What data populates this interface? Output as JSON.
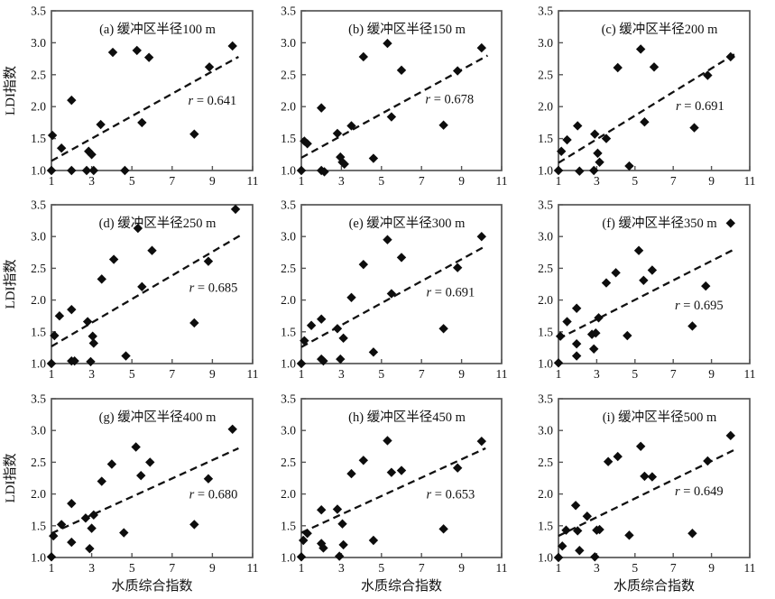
{
  "figure": {
    "xlabel": "水质综合指数",
    "ylabel": "LDI指数",
    "xlim": [
      1,
      11
    ],
    "ylim": [
      1.0,
      3.5
    ],
    "xticks": [
      1,
      3,
      5,
      7,
      9,
      11
    ],
    "yticks": [
      1.0,
      1.5,
      2.0,
      2.5,
      3.0,
      3.5
    ],
    "background": "#ffffff",
    "ink_color": "#111111",
    "frame_color": "#565656",
    "grid": false,
    "marker": "diamond",
    "trend_style": "dashed",
    "legend": "none"
  },
  "chart_data": [
    {
      "id": "a",
      "type": "scatter",
      "title": "(a) 缓冲区半径100 m",
      "r_label": "r = 0.641",
      "r_value": "0.641",
      "r_pos": [
        9.0,
        2.1
      ],
      "trend": {
        "x1": 1,
        "y1": 1.15,
        "x2": 10.3,
        "y2": 2.78
      },
      "points": [
        [
          1,
          1.0
        ],
        [
          1.05,
          1.55
        ],
        [
          1.5,
          1.35
        ],
        [
          2,
          2.1
        ],
        [
          2,
          1.0
        ],
        [
          2.75,
          1.0
        ],
        [
          2.85,
          1.3
        ],
        [
          3.0,
          1.25
        ],
        [
          3.1,
          1.0
        ],
        [
          3.45,
          1.72
        ],
        [
          4.05,
          2.85
        ],
        [
          4.65,
          1.0
        ],
        [
          5.25,
          2.88
        ],
        [
          5.5,
          1.75
        ],
        [
          5.85,
          2.77
        ],
        [
          8.1,
          1.57
        ],
        [
          8.85,
          2.62
        ],
        [
          10,
          2.95
        ]
      ]
    },
    {
      "id": "b",
      "type": "scatter",
      "title": "(b) 缓冲区半径150 m",
      "r_label": "r = 0.678",
      "r_value": "0.678",
      "r_pos": [
        8.4,
        2.12
      ],
      "trend": {
        "x1": 1,
        "y1": 1.2,
        "x2": 10.3,
        "y2": 2.8
      },
      "points": [
        [
          1,
          1.0
        ],
        [
          1.15,
          1.46
        ],
        [
          1.3,
          1.42
        ],
        [
          2,
          1.98
        ],
        [
          2,
          1.0
        ],
        [
          2.15,
          0.98
        ],
        [
          2.8,
          1.58
        ],
        [
          2.95,
          1.21
        ],
        [
          3.05,
          1.13
        ],
        [
          3.15,
          1.1
        ],
        [
          3.5,
          1.7
        ],
        [
          4.1,
          2.78
        ],
        [
          4.6,
          1.19
        ],
        [
          5.3,
          2.99
        ],
        [
          5.5,
          1.84
        ],
        [
          6.0,
          2.57
        ],
        [
          8.1,
          1.71
        ],
        [
          8.8,
          2.56
        ],
        [
          10,
          2.92
        ]
      ]
    },
    {
      "id": "c",
      "type": "scatter",
      "title": "(c) 缓冲区半径200 m",
      "r_label": "r = 0.691",
      "r_value": "0.691",
      "r_pos": [
        8.4,
        2.02
      ],
      "trend": {
        "x1": 1,
        "y1": 1.12,
        "x2": 10.2,
        "y2": 2.82
      },
      "points": [
        [
          1,
          1.0
        ],
        [
          1.15,
          1.3
        ],
        [
          1.45,
          1.48
        ],
        [
          2,
          1.7
        ],
        [
          2.1,
          0.99
        ],
        [
          2.85,
          1.0
        ],
        [
          2.9,
          1.57
        ],
        [
          3.05,
          1.27
        ],
        [
          3.15,
          1.13
        ],
        [
          3.5,
          1.5
        ],
        [
          4.1,
          2.61
        ],
        [
          4.7,
          1.07
        ],
        [
          5.3,
          2.9
        ],
        [
          5.5,
          1.76
        ],
        [
          6.0,
          2.62
        ],
        [
          8.1,
          1.67
        ],
        [
          8.8,
          2.49
        ],
        [
          10,
          2.78
        ]
      ]
    },
    {
      "id": "d",
      "type": "scatter",
      "title": "(d) 缓冲区半径250 m",
      "r_label": "r = 0.685",
      "r_value": "0.685",
      "r_pos": [
        9.05,
        2.2
      ],
      "trend": {
        "x1": 1,
        "y1": 1.27,
        "x2": 10.4,
        "y2": 3.02
      },
      "points": [
        [
          1,
          1.0
        ],
        [
          1.15,
          1.44
        ],
        [
          1.4,
          1.75
        ],
        [
          2,
          1.85
        ],
        [
          2,
          1.04
        ],
        [
          2.15,
          1.04
        ],
        [
          2.8,
          1.66
        ],
        [
          2.95,
          1.03
        ],
        [
          3.05,
          1.43
        ],
        [
          3.1,
          1.32
        ],
        [
          3.5,
          2.33
        ],
        [
          4.1,
          2.64
        ],
        [
          4.7,
          1.12
        ],
        [
          5.3,
          3.13
        ],
        [
          5.5,
          2.21
        ],
        [
          6.0,
          2.78
        ],
        [
          8.1,
          1.64
        ],
        [
          8.8,
          2.61
        ],
        [
          10.15,
          3.43
        ]
      ]
    },
    {
      "id": "e",
      "type": "scatter",
      "title": "(e) 缓冲区半径300 m",
      "r_label": "r = 0.691",
      "r_value": "0.691",
      "r_pos": [
        8.45,
        2.13
      ],
      "trend": {
        "x1": 1,
        "y1": 1.26,
        "x2": 10.2,
        "y2": 2.85
      },
      "points": [
        [
          1,
          1.0
        ],
        [
          1.15,
          1.36
        ],
        [
          1.5,
          1.6
        ],
        [
          2,
          1.7
        ],
        [
          2,
          1.07
        ],
        [
          2.1,
          1.04
        ],
        [
          2.8,
          1.55
        ],
        [
          2.95,
          1.07
        ],
        [
          3.1,
          1.4
        ],
        [
          3.5,
          2.04
        ],
        [
          4.1,
          2.56
        ],
        [
          4.6,
          1.18
        ],
        [
          5.3,
          2.95
        ],
        [
          5.5,
          2.1
        ],
        [
          6.0,
          2.67
        ],
        [
          8.1,
          1.55
        ],
        [
          8.8,
          2.51
        ],
        [
          10,
          3.0
        ]
      ]
    },
    {
      "id": "f",
      "type": "scatter",
      "title": "(f) 缓冲区半径350 m",
      "r_label": "r = 0.695",
      "r_value": "0.695",
      "r_pos": [
        8.35,
        1.92
      ],
      "trend": {
        "x1": 1,
        "y1": 1.39,
        "x2": 10.2,
        "y2": 2.8
      },
      "points": [
        [
          1,
          1.01
        ],
        [
          1.1,
          1.43
        ],
        [
          1.45,
          1.66
        ],
        [
          1.95,
          1.87
        ],
        [
          1.95,
          1.31
        ],
        [
          1.95,
          1.12
        ],
        [
          2.75,
          1.46
        ],
        [
          2.95,
          1.48
        ],
        [
          2.85,
          1.23
        ],
        [
          3.1,
          1.72
        ],
        [
          3.5,
          2.27
        ],
        [
          4.0,
          2.43
        ],
        [
          4.6,
          1.44
        ],
        [
          5.2,
          2.78
        ],
        [
          5.45,
          2.31
        ],
        [
          5.9,
          2.47
        ],
        [
          8.0,
          1.59
        ],
        [
          8.7,
          2.22
        ],
        [
          10,
          3.21
        ]
      ]
    },
    {
      "id": "g",
      "type": "scatter",
      "title": "(g) 缓冲区半径400 m",
      "r_label": "r = 0.680",
      "r_value": "0.680",
      "r_pos": [
        9.05,
        2.0
      ],
      "trend": {
        "x1": 1,
        "y1": 1.38,
        "x2": 10.3,
        "y2": 2.72
      },
      "points": [
        [
          1,
          1.01
        ],
        [
          1.1,
          1.34
        ],
        [
          1.5,
          1.52
        ],
        [
          2,
          1.85
        ],
        [
          2,
          1.24
        ],
        [
          2.7,
          1.62
        ],
        [
          2.9,
          1.14
        ],
        [
          3.0,
          1.46
        ],
        [
          3.1,
          1.67
        ],
        [
          3.5,
          2.2
        ],
        [
          4.0,
          2.47
        ],
        [
          4.6,
          1.39
        ],
        [
          5.2,
          2.74
        ],
        [
          5.45,
          2.29
        ],
        [
          5.9,
          2.5
        ],
        [
          8.1,
          1.52
        ],
        [
          8.8,
          2.24
        ],
        [
          10,
          3.02
        ]
      ]
    },
    {
      "id": "h",
      "type": "scatter",
      "title": "(h) 缓冲区半径450 m",
      "r_label": "r = 0.653",
      "r_value": "0.653",
      "r_pos": [
        8.45,
        2.0
      ],
      "trend": {
        "x1": 1,
        "y1": 1.39,
        "x2": 10.2,
        "y2": 2.72
      },
      "points": [
        [
          1,
          1.01
        ],
        [
          1.1,
          1.27
        ],
        [
          1.3,
          1.38
        ],
        [
          2,
          1.75
        ],
        [
          2,
          1.22
        ],
        [
          2.1,
          1.15
        ],
        [
          2.8,
          1.76
        ],
        [
          2.9,
          1.02
        ],
        [
          3.05,
          1.53
        ],
        [
          3.1,
          1.2
        ],
        [
          3.5,
          2.32
        ],
        [
          4.1,
          2.53
        ],
        [
          4.6,
          1.27
        ],
        [
          5.3,
          2.84
        ],
        [
          5.5,
          2.34
        ],
        [
          6.0,
          2.37
        ],
        [
          8.1,
          1.45
        ],
        [
          8.8,
          2.41
        ],
        [
          10,
          2.83
        ]
      ]
    },
    {
      "id": "i",
      "type": "scatter",
      "title": "(i) 缓冲区半径500 m",
      "r_label": "r = 0.649",
      "r_value": "0.649",
      "r_pos": [
        8.35,
        2.05
      ],
      "trend": {
        "x1": 1,
        "y1": 1.34,
        "x2": 10.3,
        "y2": 2.71
      },
      "points": [
        [
          1,
          1.0
        ],
        [
          1.2,
          1.18
        ],
        [
          1.4,
          1.43
        ],
        [
          1.9,
          1.82
        ],
        [
          2,
          1.42
        ],
        [
          2.1,
          1.11
        ],
        [
          2.5,
          1.65
        ],
        [
          2.9,
          1.01
        ],
        [
          3.0,
          1.43
        ],
        [
          3.15,
          1.44
        ],
        [
          3.6,
          2.51
        ],
        [
          4.1,
          2.59
        ],
        [
          4.7,
          1.35
        ],
        [
          5.3,
          2.75
        ],
        [
          5.5,
          2.28
        ],
        [
          5.9,
          2.27
        ],
        [
          8.0,
          1.38
        ],
        [
          8.8,
          2.52
        ],
        [
          10,
          2.92
        ]
      ]
    }
  ]
}
